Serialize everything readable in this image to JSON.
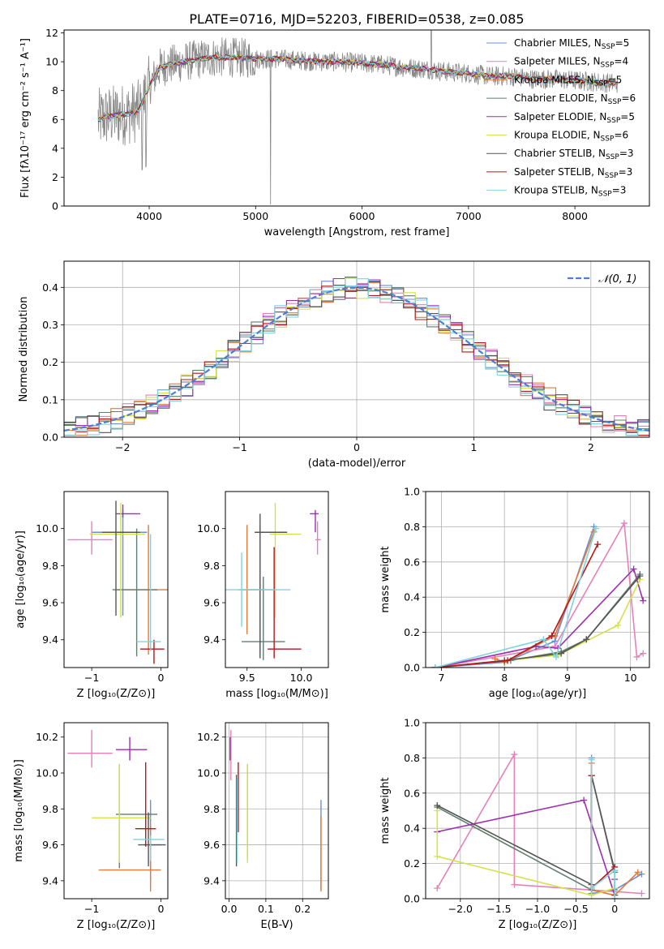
{
  "title": "PLATE=0716, MJD=52203, FIBERID=0538, z=0.085",
  "models": [
    {
      "name": "Chabrier MILES",
      "nssp": "5",
      "color": "#6b8fd6"
    },
    {
      "name": "Salpeter MILES",
      "nssp": "4",
      "color": "#e87fb8"
    },
    {
      "name": "Kroupa MILES",
      "nssp": "5",
      "color": "#e07b39"
    },
    {
      "name": "Chabrier ELODIE",
      "nssp": "6",
      "color": "#5f7f6f"
    },
    {
      "name": "Salpeter ELODIE",
      "nssp": "5",
      "color": "#9b2fae"
    },
    {
      "name": "Kroupa ELODIE",
      "nssp": "6",
      "color": "#d4e24a"
    },
    {
      "name": "Chabrier STELIB",
      "nssp": "3",
      "color": "#555555"
    },
    {
      "name": "Salpeter STELIB",
      "nssp": "3",
      "color": "#b5171b"
    },
    {
      "name": "Kroupa STELIB",
      "nssp": "3",
      "color": "#7fd3e0"
    }
  ],
  "chart_data": [
    {
      "id": "spectrum",
      "type": "line",
      "xlabel": "wavelength [Angstrom, rest frame]",
      "ylabel": "Flux [fλ10⁻¹⁷ erg cm⁻² s⁻¹ A⁻¹]",
      "xlim": [
        3200,
        8700
      ],
      "ylim": [
        0,
        12.2
      ],
      "xticks": [
        4000,
        5000,
        6000,
        7000,
        8000
      ],
      "yticks": [
        0,
        2,
        4,
        6,
        8,
        10,
        12
      ],
      "data_color": "#888888",
      "continuum_x": [
        3520,
        3600,
        3700,
        3800,
        3900,
        4000,
        4100,
        4200,
        4400,
        4600,
        4800,
        5000,
        5200,
        5400,
        5600,
        5800,
        6000,
        6200,
        6400,
        6600,
        6800,
        7000,
        7200,
        7400,
        7600,
        7800,
        8000,
        8200,
        8400
      ],
      "continuum_y": [
        6.0,
        6.2,
        6.3,
        6.4,
        6.6,
        8.3,
        9.6,
        9.8,
        10.1,
        10.3,
        10.3,
        10.2,
        10.2,
        10.1,
        10.0,
        10.0,
        9.9,
        9.8,
        9.6,
        9.5,
        9.3,
        9.2,
        9.0,
        9.0,
        8.8,
        8.8,
        8.7,
        8.6,
        8.5
      ],
      "legend_position": "top-right"
    },
    {
      "id": "residuals",
      "type": "histogram",
      "xlabel": "(data-model)/error",
      "ylabel": "Normed distribution",
      "xlim": [
        -2.5,
        2.5
      ],
      "ylim": [
        0,
        0.47
      ],
      "xticks": [
        -2,
        -1,
        0,
        1,
        2
      ],
      "yticks": [
        0.0,
        0.1,
        0.2,
        0.3,
        0.4
      ],
      "bin_width": 0.1,
      "gaussian_label": "𝒩(0, 1)",
      "gaussian_color": "#4a7fd4",
      "legend_position": "top-right"
    },
    {
      "id": "age-vs-Z",
      "type": "errorbar",
      "xlabel": "Z [log₁₀(Z/Z⊙)]",
      "ylabel": "age  [log₁₀(age/yr)]",
      "xlim": [
        -1.4,
        0.1
      ],
      "ylim": [
        9.25,
        10.2
      ],
      "xticks": [
        -1,
        0
      ],
      "yticks": [
        9.4,
        9.6,
        9.8,
        10.0
      ],
      "points": [
        {
          "m": 0,
          "x": -0.55,
          "y": 9.98,
          "xl": 0.45,
          "xh": 0.35,
          "yl": 0.45,
          "yh": 0.12
        },
        {
          "m": 1,
          "x": -1.0,
          "y": 9.94,
          "xl": 0.35,
          "xh": 0.3,
          "yl": 0.08,
          "yh": 0.1
        },
        {
          "m": 2,
          "x": -0.18,
          "y": 9.67,
          "xl": 0.45,
          "xh": 0.3,
          "yl": 0.35,
          "yh": 0.35
        },
        {
          "m": 3,
          "x": -0.35,
          "y": 9.67,
          "xl": 0.35,
          "xh": 0.3,
          "yl": 0.36,
          "yh": 0.33
        },
        {
          "m": 4,
          "x": -0.55,
          "y": 10.08,
          "xl": 0.1,
          "xh": 0.25,
          "yl": 0.02,
          "yh": 0.05
        },
        {
          "m": 5,
          "x": -0.58,
          "y": 9.97,
          "xl": 0.45,
          "xh": 0.35,
          "yl": 0.45,
          "yh": 0.17
        },
        {
          "m": 6,
          "x": -0.65,
          "y": 9.98,
          "xl": 0.2,
          "xh": 0.35,
          "yl": 0.45,
          "yh": 0.17
        },
        {
          "m": 7,
          "x": -0.1,
          "y": 9.35,
          "xl": 0.2,
          "xh": 0.15,
          "yl": 0.08,
          "yh": 0.05
        },
        {
          "m": 8,
          "x": -0.15,
          "y": 9.39,
          "xl": 0.2,
          "xh": 0.15,
          "yl": 0.05,
          "yh": 0.58
        }
      ]
    },
    {
      "id": "age-vs-mass",
      "type": "errorbar",
      "xlabel": "mass [log₁₀(M/M⊙)]",
      "ylabel": "",
      "xlim": [
        9.3,
        10.25
      ],
      "ylim": [
        9.25,
        10.2
      ],
      "xticks": [
        9.5,
        10.0
      ],
      "yticks": [
        9.4,
        9.6,
        9.8,
        10.0
      ],
      "points": [
        {
          "m": 0,
          "x": 9.62,
          "y": 9.67,
          "xl": 0.2,
          "xh": 0.15,
          "yl": 0.35,
          "yh": 0.35
        },
        {
          "m": 1,
          "x": 10.15,
          "y": 9.94,
          "xl": 0.02,
          "xh": 0.03,
          "yl": 0.08,
          "yh": 0.1
        },
        {
          "m": 2,
          "x": 9.5,
          "y": 9.67,
          "xl": 0.05,
          "xh": 0.15,
          "yl": 0.24,
          "yh": 0.35
        },
        {
          "m": 3,
          "x": 9.65,
          "y": 9.39,
          "xl": 0.2,
          "xh": 0.2,
          "yl": 0.1,
          "yh": 0.35
        },
        {
          "m": 4,
          "x": 10.13,
          "y": 10.08,
          "xl": 0.05,
          "xh": 0.03,
          "yl": 0.1,
          "yh": 0.02
        },
        {
          "m": 5,
          "x": 9.76,
          "y": 9.97,
          "xl": 0.05,
          "xh": 0.24,
          "yl": 0.45,
          "yh": 0.17
        },
        {
          "m": 6,
          "x": 9.62,
          "y": 9.98,
          "xl": 0.05,
          "xh": 0.25,
          "yl": 0.68,
          "yh": 0.1
        },
        {
          "m": 7,
          "x": 9.75,
          "y": 9.35,
          "xl": 0.06,
          "xh": 0.25,
          "yl": 0.05,
          "yh": 0.55
        },
        {
          "m": 8,
          "x": 9.45,
          "y": 9.67,
          "xl": 0.15,
          "xh": 0.45,
          "yl": 0.2,
          "yh": 0.2
        }
      ]
    },
    {
      "id": "massweight-vs-age",
      "type": "line",
      "xlabel": "age  [log₁₀(age/yr)]",
      "ylabel": "mass weight",
      "xlim": [
        6.75,
        10.3
      ],
      "ylim": [
        0,
        1.0
      ],
      "xticks": [
        7,
        8,
        9,
        10
      ],
      "yticks": [
        0.0,
        0.2,
        0.4,
        0.6,
        0.8,
        1.0
      ],
      "series": [
        {
          "m": 0,
          "x": [
            6.9,
            8.0,
            8.8,
            9.42
          ],
          "y": [
            0.0,
            0.03,
            0.15,
            0.8
          ]
        },
        {
          "m": 1,
          "x": [
            6.9,
            8.8,
            9.9,
            10.1,
            10.2
          ],
          "y": [
            0.0,
            0.12,
            0.82,
            0.06,
            0.08
          ]
        },
        {
          "m": 2,
          "x": [
            7.85,
            8.0,
            8.8,
            9.42
          ],
          "y": [
            0.05,
            0.03,
            0.18,
            0.77
          ]
        },
        {
          "m": 3,
          "x": [
            6.9,
            8.1,
            8.9,
            9.3,
            10.15
          ],
          "y": [
            0.0,
            0.04,
            0.09,
            0.16,
            0.53
          ]
        },
        {
          "m": 4,
          "x": [
            6.9,
            8.5,
            8.85,
            10.05,
            10.2
          ],
          "y": [
            0.0,
            0.12,
            0.11,
            0.56,
            0.38
          ]
        },
        {
          "m": 5,
          "x": [
            6.9,
            8.85,
            9.8,
            10.15
          ],
          "y": [
            0.0,
            0.07,
            0.24,
            0.5
          ]
        },
        {
          "m": 6,
          "x": [
            6.9,
            8.0,
            8.9,
            9.3,
            10.15
          ],
          "y": [
            0.0,
            0.04,
            0.08,
            0.16,
            0.52
          ]
        },
        {
          "m": 7,
          "x": [
            6.9,
            8.05,
            8.75,
            9.48
          ],
          "y": [
            0.0,
            0.04,
            0.18,
            0.7
          ]
        },
        {
          "m": 8,
          "x": [
            6.9,
            8.62,
            8.82,
            9.45
          ],
          "y": [
            0.0,
            0.16,
            0.06,
            0.79
          ]
        }
      ]
    },
    {
      "id": "mass-vs-Z",
      "type": "errorbar",
      "xlabel": "Z [log₁₀(Z/Z⊙)]",
      "ylabel": "mass [log₁₀(M/M⊙)]",
      "xlim": [
        -1.4,
        0.1
      ],
      "ylim": [
        9.3,
        10.28
      ],
      "xticks": [
        -1,
        0
      ],
      "yticks": [
        9.4,
        9.6,
        9.8,
        10.0,
        10.2
      ],
      "points": [
        {
          "m": 0,
          "x": -0.15,
          "y": 9.6,
          "xl": 0.1,
          "xh": 0.15,
          "yl": 0.2,
          "yh": 0.25
        },
        {
          "m": 1,
          "x": -1.0,
          "y": 10.11,
          "xl": 0.35,
          "xh": 0.3,
          "yl": 0.08,
          "yh": 0.13
        },
        {
          "m": 2,
          "x": -0.15,
          "y": 9.46,
          "xl": 0.75,
          "xh": 0.15,
          "yl": 0.12,
          "yh": 0.25
        },
        {
          "m": 3,
          "x": -0.6,
          "y": 9.77,
          "xl": 0.05,
          "xh": 0.55,
          "yl": 0.3,
          "yh": 0.28
        },
        {
          "m": 4,
          "x": -0.45,
          "y": 10.13,
          "xl": 0.2,
          "xh": 0.25,
          "yl": 0.06,
          "yh": 0.07
        },
        {
          "m": 5,
          "x": -0.6,
          "y": 9.75,
          "xl": 0.4,
          "xh": 0.45,
          "yl": 0.25,
          "yh": 0.3
        },
        {
          "m": 6,
          "x": -0.18,
          "y": 9.6,
          "xl": 0.15,
          "xh": 0.25,
          "yl": 0.12,
          "yh": 0.18
        },
        {
          "m": 7,
          "x": -0.22,
          "y": 9.69,
          "xl": 0.15,
          "xh": 0.15,
          "yl": 0.1,
          "yh": 0.37
        },
        {
          "m": 8,
          "x": -0.15,
          "y": 9.63,
          "xl": 0.25,
          "xh": 0.2,
          "yl": 0.12,
          "yh": 0.02
        }
      ]
    },
    {
      "id": "mass-vs-EBV",
      "type": "errorbar",
      "xlabel": "E(B-V)",
      "ylabel": "",
      "xlim": [
        -0.01,
        0.27
      ],
      "ylim": [
        9.3,
        10.28
      ],
      "xticks": [
        0.0,
        0.1,
        0.2
      ],
      "yticks": [
        9.4,
        9.6,
        9.8,
        10.0,
        10.2
      ],
      "points": [
        {
          "m": 0,
          "x": 0.25,
          "y": 9.6,
          "xl": 0.0,
          "xh": 0.0,
          "yl": 0.25,
          "yh": 0.25
        },
        {
          "m": 1,
          "x": 0.005,
          "y": 10.1,
          "xl": 0.0,
          "xh": 0.0,
          "yl": 0.14,
          "yh": 0.14
        },
        {
          "m": 2,
          "x": 0.25,
          "y": 9.46,
          "xl": 0.0,
          "xh": 0.0,
          "yl": 0.12,
          "yh": 0.3
        },
        {
          "m": 3,
          "x": 0.05,
          "y": 9.77,
          "xl": 0.0,
          "xh": 0.0,
          "yl": 0.25,
          "yh": 0.28
        },
        {
          "m": 4,
          "x": 0.003,
          "y": 10.13,
          "xl": 0.0,
          "xh": 0.0,
          "yl": 0.06,
          "yh": 0.07
        },
        {
          "m": 5,
          "x": 0.05,
          "y": 9.75,
          "xl": 0.0,
          "xh": 0.0,
          "yl": 0.25,
          "yh": 0.3
        },
        {
          "m": 6,
          "x": 0.02,
          "y": 9.75,
          "xl": 0.0,
          "xh": 0.0,
          "yl": 0.27,
          "yh": 0.24
        },
        {
          "m": 7,
          "x": 0.025,
          "y": 9.82,
          "xl": 0.0,
          "xh": 0.0,
          "yl": 0.15,
          "yh": 0.24
        },
        {
          "m": 8,
          "x": 0.022,
          "y": 9.75,
          "xl": 0.0,
          "xh": 0.0,
          "yl": 0.25,
          "yh": 0.22
        }
      ]
    },
    {
      "id": "massweight-vs-Z",
      "type": "line",
      "xlabel": "Z [log₁₀(Z/Z⊙)]",
      "ylabel": "mass weight",
      "xlim": [
        -2.45,
        0.45
      ],
      "ylim": [
        0,
        1.0
      ],
      "xticks": [
        -2.0,
        -1.5,
        -1.0,
        -0.5,
        0.0
      ],
      "yticks": [
        0.0,
        0.2,
        0.4,
        0.6,
        0.8,
        1.0
      ],
      "series": [
        {
          "m": 0,
          "x": [
            -0.3,
            -0.3,
            0.0,
            0.35
          ],
          "y": [
            0.8,
            0.03,
            0.05,
            0.14
          ]
        },
        {
          "m": 1,
          "x": [
            -2.3,
            -1.3,
            -1.3,
            0.35
          ],
          "y": [
            0.06,
            0.82,
            0.08,
            0.03
          ]
        },
        {
          "m": 2,
          "x": [
            -0.3,
            -0.3,
            0.0,
            0.3
          ],
          "y": [
            0.77,
            0.05,
            0.02,
            0.15
          ]
        },
        {
          "m": 3,
          "x": [
            -2.3,
            -0.3,
            -0.3,
            0.0
          ],
          "y": [
            0.52,
            0.05,
            0.7,
            0.15
          ]
        },
        {
          "m": 4,
          "x": [
            -2.3,
            -0.4,
            0.0,
            0.0
          ],
          "y": [
            0.38,
            0.56,
            0.02,
            0.11
          ]
        },
        {
          "m": 5,
          "x": [
            -2.3,
            -2.3,
            -0.3,
            0.0
          ],
          "y": [
            0.5,
            0.24,
            0.02,
            0.06
          ]
        },
        {
          "m": 6,
          "x": [
            -2.3,
            -0.3,
            -0.3,
            0.0
          ],
          "y": [
            0.53,
            0.08,
            0.7,
            0.16
          ]
        },
        {
          "m": 7,
          "x": [
            -0.3,
            -0.3,
            0.0,
            0.0
          ],
          "y": [
            0.7,
            0.06,
            0.18,
            0.0
          ]
        },
        {
          "m": 8,
          "x": [
            -0.3,
            -0.3,
            0.0,
            0.0
          ],
          "y": [
            0.79,
            0.06,
            0.16,
            0.0
          ]
        }
      ]
    }
  ]
}
